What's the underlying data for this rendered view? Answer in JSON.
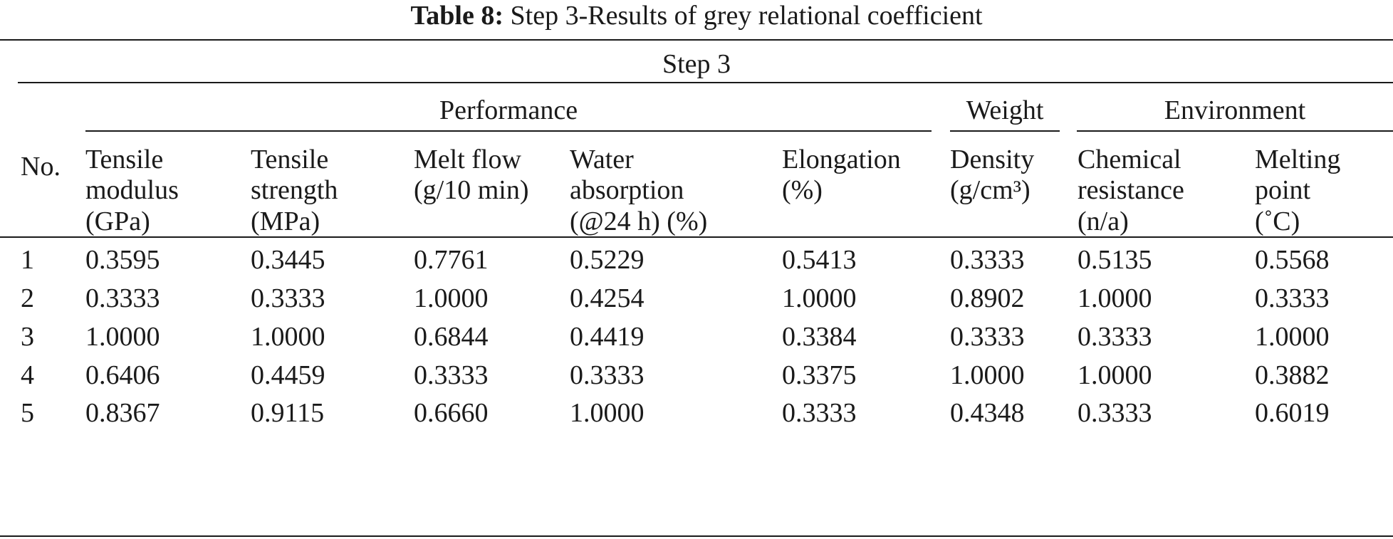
{
  "caption": {
    "label": "Table 8:",
    "title": "Step 3-Results of grey relational coefficient"
  },
  "table": {
    "step_header": "Step 3",
    "groups": {
      "performance": "Performance",
      "weight": "Weight",
      "environment": "Environment"
    },
    "no_header": "No.",
    "columns": [
      [
        "Tensile",
        "modulus",
        "(GPa)"
      ],
      [
        "Tensile",
        "strength",
        "(MPa)"
      ],
      [
        "Melt flow",
        "(g/10 min)"
      ],
      [
        "Water",
        "absorption",
        "(@24 h) (%)"
      ],
      [
        "Elongation",
        "(%)"
      ],
      [
        "Density",
        "(g/cm³)"
      ],
      [
        "Chemical",
        "resistance",
        "(n/a)"
      ],
      [
        "Melting",
        "point",
        "(˚C)"
      ]
    ],
    "rows": [
      [
        "1",
        "0.3595",
        "0.3445",
        "0.7761",
        "0.5229",
        "0.5413",
        "0.3333",
        "0.5135",
        "0.5568"
      ],
      [
        "2",
        "0.3333",
        "0.3333",
        "1.0000",
        "0.4254",
        "1.0000",
        "0.8902",
        "1.0000",
        "0.3333"
      ],
      [
        "3",
        "1.0000",
        "1.0000",
        "0.6844",
        "0.4419",
        "0.3384",
        "0.3333",
        "0.3333",
        "1.0000"
      ],
      [
        "4",
        "0.6406",
        "0.4459",
        "0.3333",
        "0.3333",
        "0.3375",
        "1.0000",
        "1.0000",
        "0.3882"
      ],
      [
        "5",
        "0.8367",
        "0.9115",
        "0.6660",
        "1.0000",
        "0.3333",
        "0.4348",
        "0.3333",
        "0.6019"
      ]
    ]
  }
}
